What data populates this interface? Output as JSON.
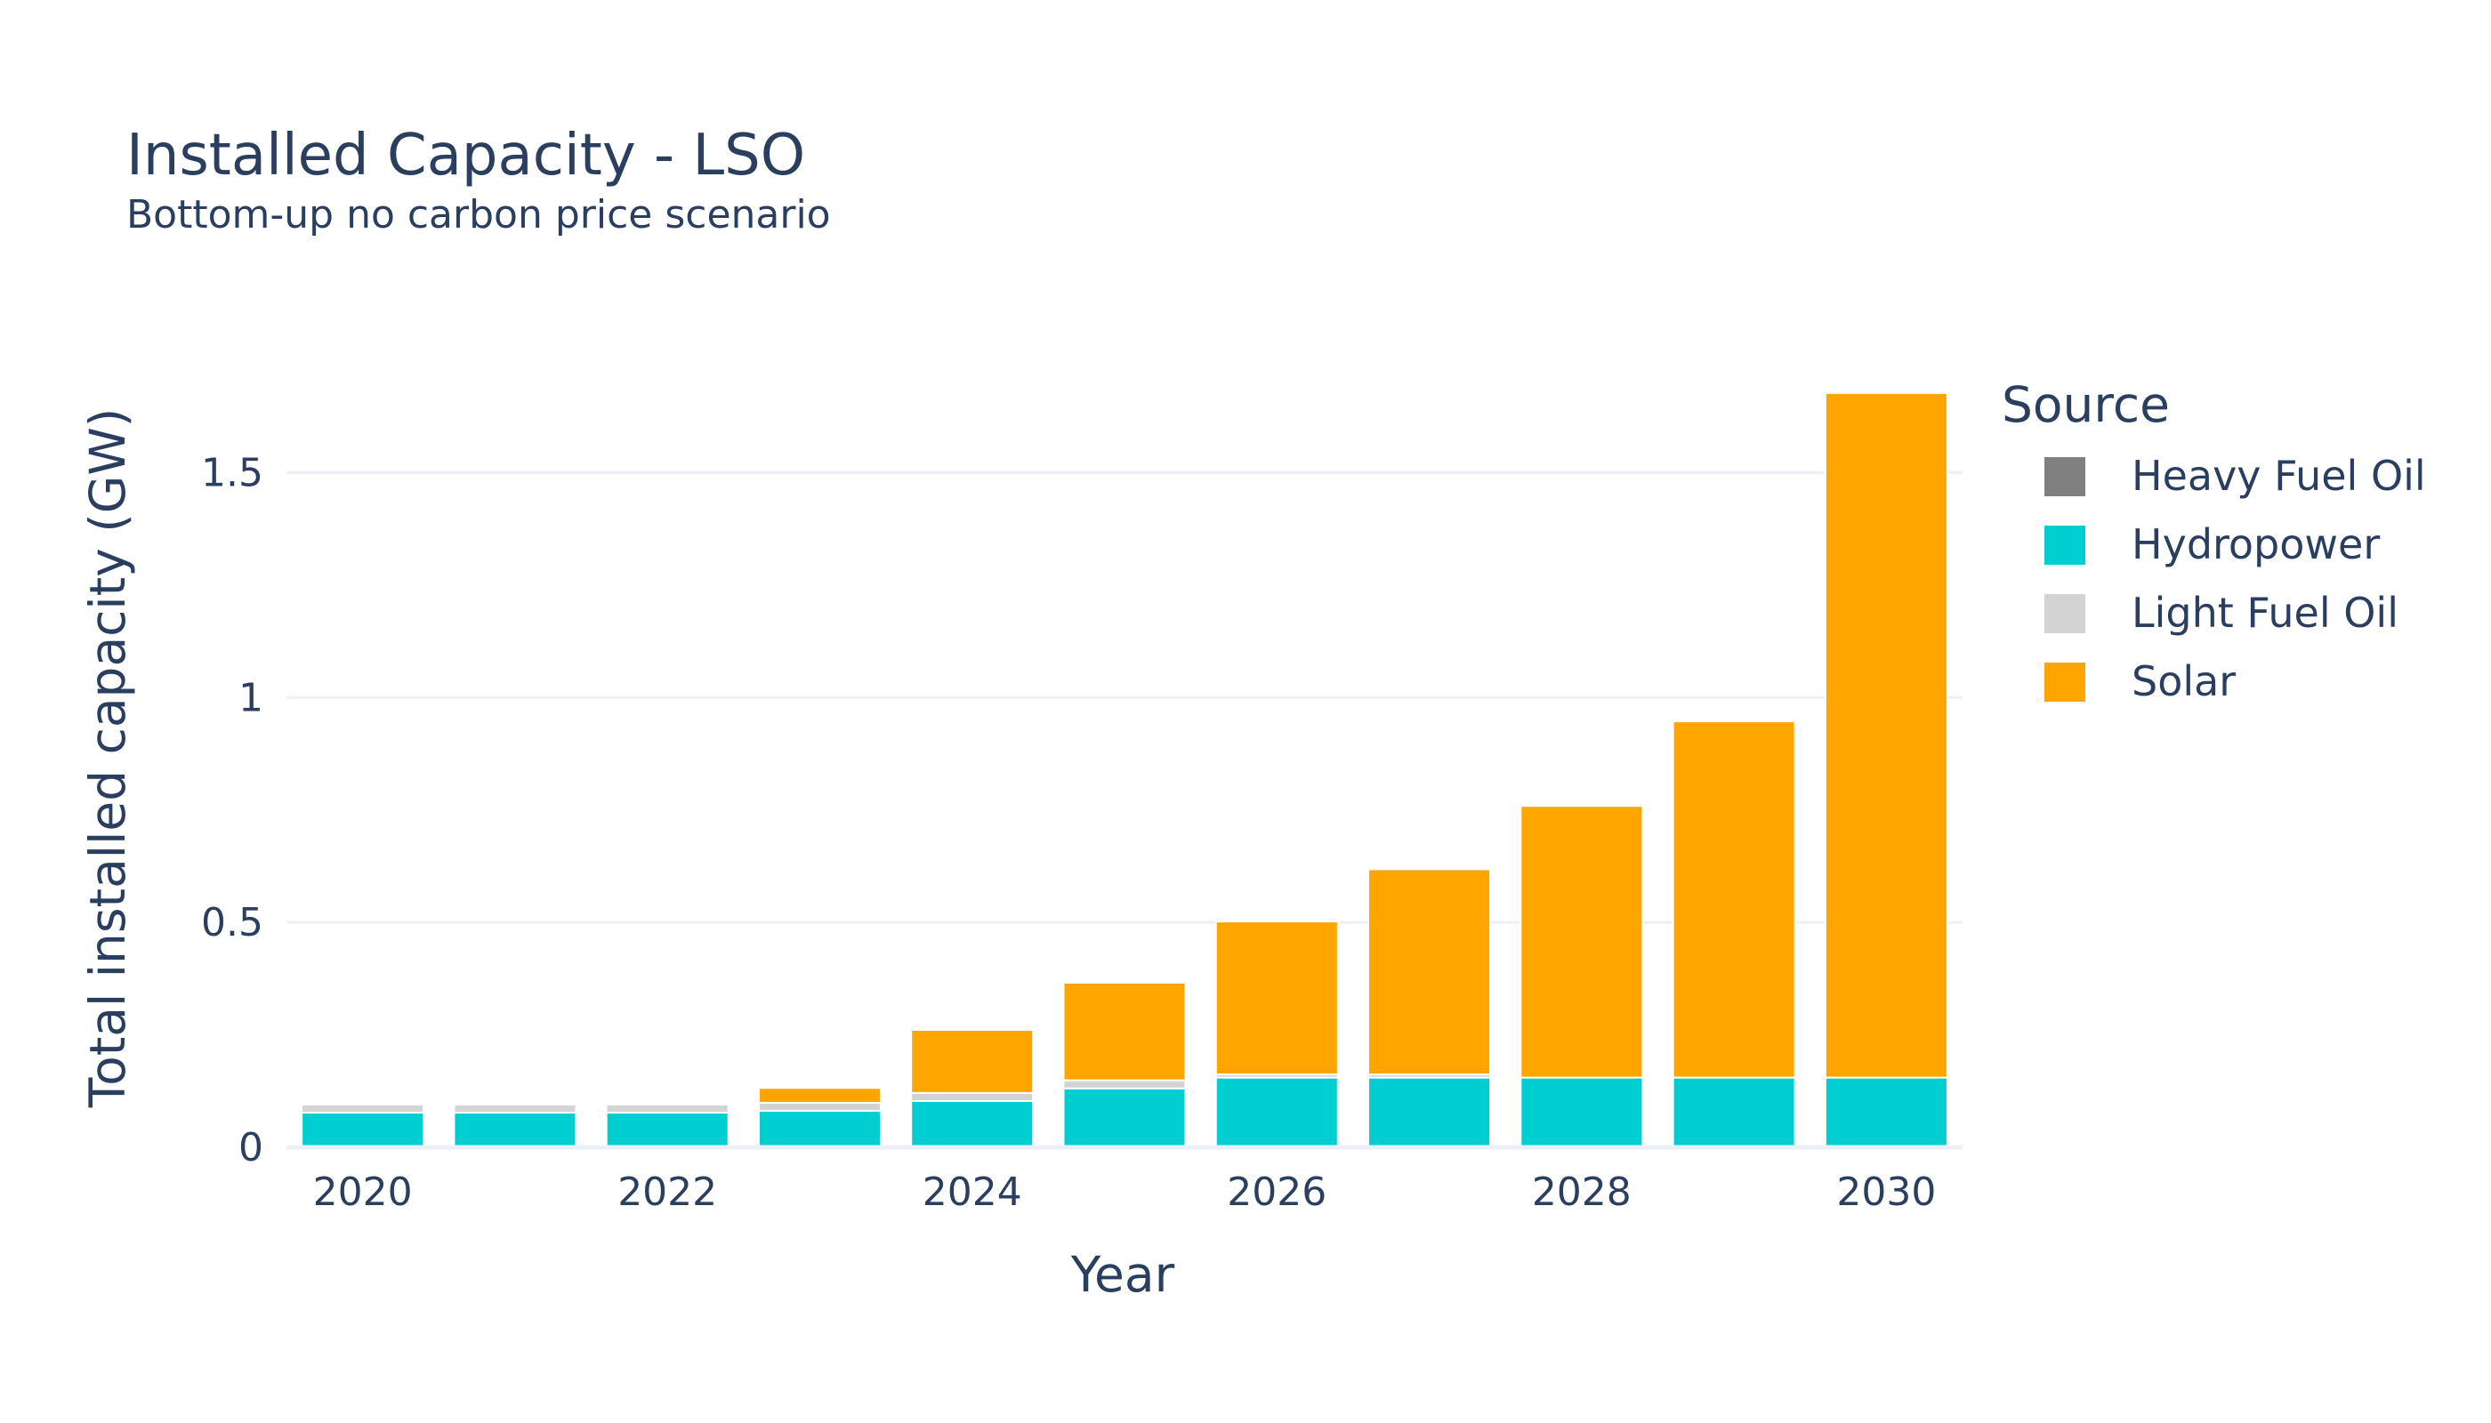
{
  "chart_data": {
    "type": "bar",
    "barmode": "stack",
    "title": "Installed Capacity - LSO",
    "subtitle": "Bottom-up no carbon price scenario",
    "xlabel": "Year",
    "ylabel": "Total installed capacity (GW)",
    "x": [
      2020,
      2021,
      2022,
      2023,
      2024,
      2025,
      2026,
      2027,
      2028,
      2029,
      2030
    ],
    "xticks": [
      "2020",
      "2022",
      "2024",
      "2026",
      "2028",
      "2030"
    ],
    "xtick_values": [
      2020,
      2022,
      2024,
      2026,
      2028,
      2030
    ],
    "yticks": [
      "0",
      "0.5",
      "1",
      "1.5"
    ],
    "ytick_values": [
      0,
      0.5,
      1,
      1.5
    ],
    "ylim": [
      0,
      1.75
    ],
    "grid": true,
    "legend": {
      "title": "Source",
      "position": "right"
    },
    "series": [
      {
        "name": "Heavy Fuel Oil",
        "color": "#808080",
        "values": [
          0,
          0,
          0,
          0,
          0,
          0,
          0,
          0,
          0,
          0,
          0
        ]
      },
      {
        "name": "Hydropower",
        "color": "#00ced1",
        "values": [
          0.077,
          0.077,
          0.077,
          0.081,
          0.103,
          0.131,
          0.155,
          0.155,
          0.155,
          0.155,
          0.155
        ]
      },
      {
        "name": "Light Fuel Oil",
        "color": "#d3d3d3",
        "values": [
          0.018,
          0.018,
          0.018,
          0.018,
          0.018,
          0.018,
          0.007,
          0.007,
          0,
          0,
          0
        ]
      },
      {
        "name": "Solar",
        "color": "#ffa500",
        "values": [
          0,
          0,
          0,
          0.033,
          0.14,
          0.217,
          0.34,
          0.456,
          0.604,
          0.792,
          1.522
        ]
      }
    ]
  }
}
